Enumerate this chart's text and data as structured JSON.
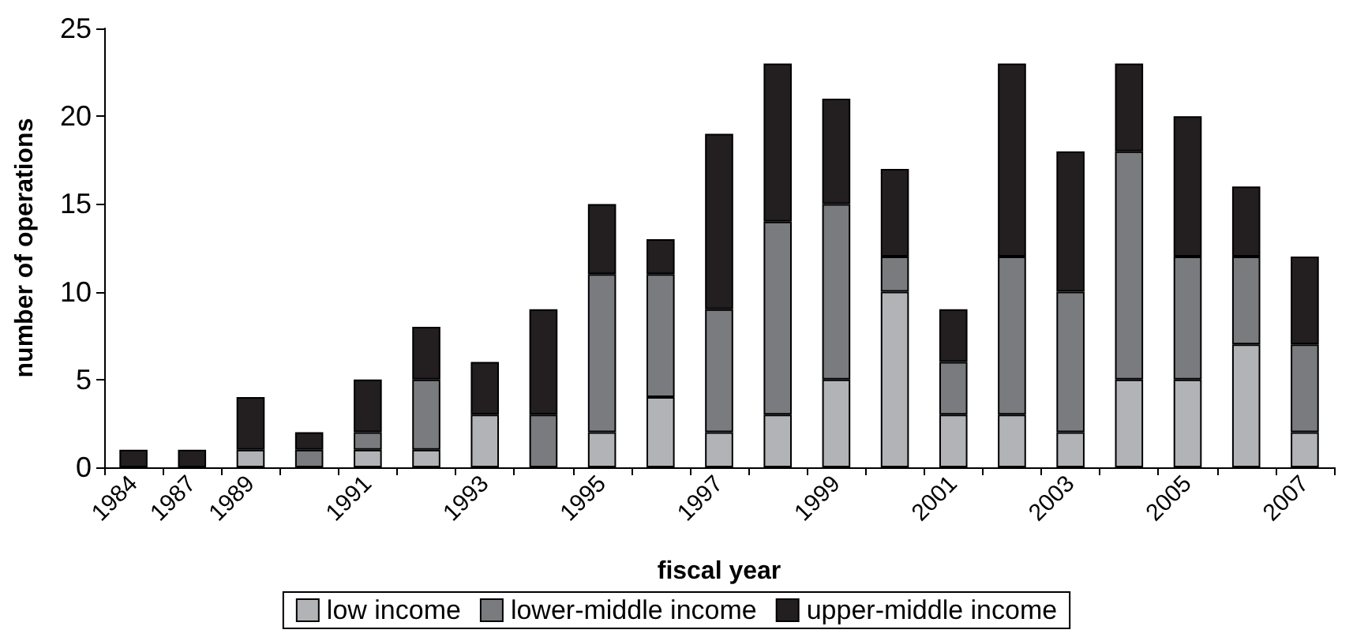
{
  "chart_data": {
    "type": "bar",
    "stacked": true,
    "xlabel": "fiscal year",
    "ylabel": "number of operations",
    "categories": [
      "1984",
      "1987",
      "1989",
      null,
      "1991",
      null,
      "1993",
      null,
      "1995",
      null,
      "1997",
      null,
      "1999",
      null,
      "2001",
      null,
      "2003",
      null,
      "2005",
      null,
      "2007"
    ],
    "series": [
      {
        "name": "low income",
        "color": "#b1b3b6",
        "values": [
          0,
          0,
          1,
          0,
          1,
          1,
          3,
          0,
          2,
          4,
          2,
          3,
          5,
          10,
          3,
          3,
          2,
          5,
          5,
          7,
          2
        ]
      },
      {
        "name": "lower-middle income",
        "color": "#7a7b7f",
        "values": [
          0,
          0,
          0,
          1,
          1,
          4,
          0,
          3,
          9,
          7,
          7,
          11,
          10,
          2,
          3,
          9,
          8,
          13,
          7,
          5,
          5
        ]
      },
      {
        "name": "upper-middle income",
        "color": "#231f20",
        "values": [
          1,
          1,
          3,
          1,
          3,
          3,
          3,
          6,
          4,
          2,
          10,
          9,
          6,
          5,
          3,
          11,
          8,
          5,
          8,
          4,
          5
        ]
      }
    ],
    "ylim": [
      0,
      25
    ],
    "yticks": [
      0,
      5,
      10,
      15,
      20,
      25
    ],
    "grid": false,
    "legend": "bottom"
  }
}
